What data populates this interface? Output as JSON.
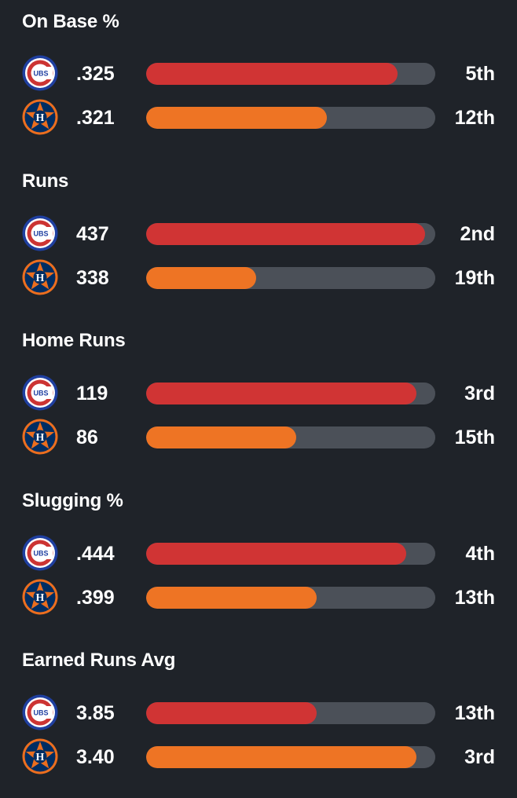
{
  "colors": {
    "cubs_bar": "#d03434",
    "astros_bar": "#ee7424",
    "track": "#4b5058",
    "background": "#1f2329"
  },
  "stats": [
    {
      "title": "On Base %",
      "cubs": {
        "value": ".325",
        "rank": "5th",
        "fill": 0.87
      },
      "astros": {
        "value": ".321",
        "rank": "12th",
        "fill": 0.625
      }
    },
    {
      "title": "Runs",
      "cubs": {
        "value": "437",
        "rank": "2nd",
        "fill": 0.965
      },
      "astros": {
        "value": "338",
        "rank": "19th",
        "fill": 0.38
      }
    },
    {
      "title": "Home Runs",
      "cubs": {
        "value": "119",
        "rank": "3rd",
        "fill": 0.935
      },
      "astros": {
        "value": "86",
        "rank": "15th",
        "fill": 0.52
      }
    },
    {
      "title": "Slugging %",
      "cubs": {
        "value": ".444",
        "rank": "4th",
        "fill": 0.9
      },
      "astros": {
        "value": ".399",
        "rank": "13th",
        "fill": 0.59
      }
    },
    {
      "title": "Earned Runs Avg",
      "cubs": {
        "value": "3.85",
        "rank": "13th",
        "fill": 0.59
      },
      "astros": {
        "value": "3.40",
        "rank": "3rd",
        "fill": 0.935
      }
    }
  ],
  "logos": {
    "cubs_text": "UBS",
    "astros_text": "H"
  }
}
